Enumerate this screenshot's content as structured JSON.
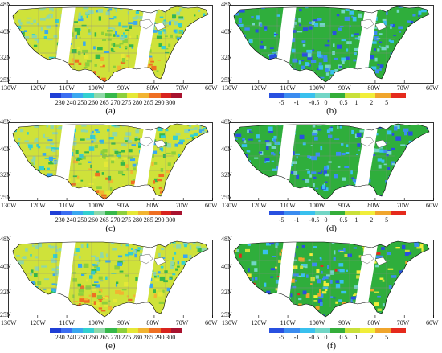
{
  "lat_labels": [
    "48N",
    "40N",
    "32N",
    "25N"
  ],
  "lon_labels": [
    "130W",
    "120W",
    "110W",
    "100W",
    "90W",
    "80W",
    "70W",
    "60W"
  ],
  "colorbar_temp": {
    "ticks": [
      "230",
      "240",
      "250",
      "260",
      "265",
      "270",
      "275",
      "280",
      "285",
      "290",
      "300"
    ],
    "colors": [
      "#1f3fd6",
      "#3b6ef2",
      "#3aa8f0",
      "#33d0d0",
      "#8fd8a8",
      "#36b84a",
      "#8ccf3c",
      "#e5e836",
      "#f2b431",
      "#ef6f22",
      "#d8231e",
      "#a8122e"
    ]
  },
  "colorbar_diff": {
    "ticks": [
      "-5",
      "-1",
      "-0.5",
      "0",
      "0.5",
      "1",
      "2",
      "5"
    ],
    "colors": [
      "#2850e0",
      "#3b8cf0",
      "#39c0ee",
      "#72d6c6",
      "#34ae3a",
      "#c9e03a",
      "#f1ee3a",
      "#f0a52c",
      "#e52a1c"
    ]
  },
  "panels": [
    {
      "label": "(a)",
      "kind": "temp"
    },
    {
      "label": "(b)",
      "kind": "diff"
    },
    {
      "label": "(c)",
      "kind": "temp"
    },
    {
      "label": "(d)",
      "kind": "diff"
    },
    {
      "label": "(e)",
      "kind": "temp"
    },
    {
      "label": "(f)",
      "kind": "diff"
    }
  ]
}
